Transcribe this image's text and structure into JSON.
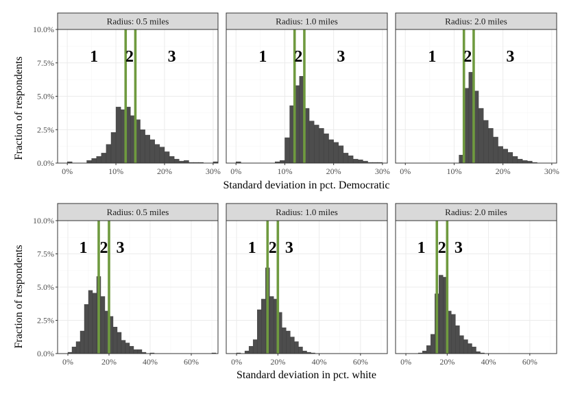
{
  "figure": {
    "rows": [
      {
        "xlabel": "Standard deviation in pct. Democratic",
        "ylabel": "Fraction of respondents"
      },
      {
        "xlabel": "Standard deviation in pct. white",
        "ylabel": "Fraction of respondents"
      }
    ]
  },
  "chart_data": [
    {
      "type": "bar",
      "title": "Radius: 0.5 miles",
      "xlabel": "Standard deviation in pct. Democratic",
      "ylabel": "Fraction of respondents",
      "xlim": [
        -2,
        31
      ],
      "ylim": [
        0,
        10
      ],
      "xticks": [
        0,
        10,
        20,
        30
      ],
      "xtick_labels": [
        "0%",
        "10%",
        "20%",
        "30%"
      ],
      "yticks": [
        0,
        2.5,
        5,
        7.5,
        10
      ],
      "ytick_labels": [
        "0.0%",
        "2.5%",
        "5.0%",
        "7.5%",
        "10.0%"
      ],
      "bin_width": 1,
      "bin_starts": [
        0,
        1,
        2,
        3,
        4,
        5,
        6,
        7,
        8,
        9,
        10,
        11,
        12,
        13,
        14,
        15,
        16,
        17,
        18,
        19,
        20,
        21,
        22,
        23,
        24,
        25,
        26,
        27,
        28,
        29,
        30
      ],
      "values": [
        0.1,
        0,
        0,
        0,
        0.2,
        0.35,
        0.5,
        0.75,
        1.4,
        2.3,
        4.2,
        4.0,
        4.2,
        3.55,
        3.25,
        2.5,
        2.1,
        1.75,
        1.4,
        1.2,
        0.85,
        0.5,
        0.3,
        0.15,
        0.2,
        0.05,
        0.05,
        0.05,
        0,
        0,
        0.1
      ],
      "vlines": [
        12,
        14
      ],
      "region_labels": [
        {
          "text": "1",
          "x": 5.5,
          "y": 8.0
        },
        {
          "text": "2",
          "x": 12.8,
          "y": 8.0
        },
        {
          "text": "3",
          "x": 21.5,
          "y": 8.0
        }
      ]
    },
    {
      "type": "bar",
      "title": "Radius: 1.0 miles",
      "xlabel": "Standard deviation in pct. Democratic",
      "ylabel": "Fraction of respondents",
      "xlim": [
        -2,
        31
      ],
      "ylim": [
        0,
        10
      ],
      "xticks": [
        0,
        10,
        20,
        30
      ],
      "xtick_labels": [
        "0%",
        "10%",
        "20%",
        "30%"
      ],
      "yticks": [
        0,
        2.5,
        5,
        7.5,
        10
      ],
      "ytick_labels": [
        "0.0%",
        "2.5%",
        "5.0%",
        "7.5%",
        "10.0%"
      ],
      "bin_width": 1,
      "bin_starts": [
        0,
        1,
        2,
        3,
        4,
        5,
        6,
        7,
        8,
        9,
        10,
        11,
        12,
        13,
        14,
        15,
        16,
        17,
        18,
        19,
        20,
        21,
        22,
        23,
        24,
        25,
        26,
        27,
        28,
        29,
        30
      ],
      "values": [
        0.1,
        0,
        0,
        0,
        0,
        0,
        0,
        0,
        0.1,
        0.2,
        1.9,
        4.3,
        5.8,
        6.5,
        4.1,
        3.15,
        2.85,
        2.6,
        2.2,
        1.75,
        1.55,
        1.3,
        0.75,
        0.55,
        0.3,
        0.25,
        0.15,
        0.05,
        0.05,
        0.05,
        0
      ],
      "vlines": [
        12,
        14
      ],
      "region_labels": [
        {
          "text": "1",
          "x": 5.5,
          "y": 8.0
        },
        {
          "text": "2",
          "x": 12.8,
          "y": 8.0
        },
        {
          "text": "3",
          "x": 21.5,
          "y": 8.0
        }
      ]
    },
    {
      "type": "bar",
      "title": "Radius: 2.0 miles",
      "xlabel": "Standard deviation in pct. Democratic",
      "ylabel": "Fraction of respondents",
      "xlim": [
        -2,
        31
      ],
      "ylim": [
        0,
        10
      ],
      "xticks": [
        0,
        10,
        20,
        30
      ],
      "xtick_labels": [
        "0%",
        "10%",
        "20%",
        "30%"
      ],
      "yticks": [
        0,
        2.5,
        5,
        7.5,
        10
      ],
      "ytick_labels": [
        "0.0%",
        "2.5%",
        "5.0%",
        "7.5%",
        "10.0%"
      ],
      "bin_width": 1,
      "bin_starts": [
        0,
        1,
        2,
        3,
        4,
        5,
        6,
        7,
        8,
        9,
        10,
        11,
        12,
        13,
        14,
        15,
        16,
        17,
        18,
        19,
        20,
        21,
        22,
        23,
        24,
        25,
        26,
        27,
        28,
        29,
        30
      ],
      "values": [
        0,
        0,
        0,
        0,
        0,
        0,
        0,
        0,
        0,
        0,
        0,
        0.6,
        5.6,
        6.8,
        5.4,
        4.1,
        3.2,
        2.6,
        1.95,
        1.25,
        1.05,
        0.8,
        0.5,
        0.3,
        0.2,
        0.15,
        0.05,
        0,
        0,
        0,
        0
      ],
      "vlines": [
        12,
        14
      ],
      "region_labels": [
        {
          "text": "1",
          "x": 5.5,
          "y": 8.0
        },
        {
          "text": "2",
          "x": 12.8,
          "y": 8.0
        },
        {
          "text": "3",
          "x": 21.5,
          "y": 8.0
        }
      ]
    },
    {
      "type": "bar",
      "title": "Radius: 0.5 miles",
      "xlabel": "Standard deviation in pct. white",
      "ylabel": "Fraction of respondents",
      "xlim": [
        -5,
        73
      ],
      "ylim": [
        0,
        10
      ],
      "xticks": [
        0,
        20,
        40,
        60
      ],
      "xtick_labels": [
        "0%",
        "20%",
        "40%",
        "60%"
      ],
      "yticks": [
        0,
        2.5,
        5,
        7.5,
        10
      ],
      "ytick_labels": [
        "0.0%",
        "2.5%",
        "5.0%",
        "7.5%",
        "10.0%"
      ],
      "bin_width": 2,
      "bin_starts": [
        0,
        2,
        4,
        6,
        8,
        10,
        12,
        14,
        16,
        18,
        20,
        22,
        24,
        26,
        28,
        30,
        32,
        34,
        36,
        38,
        40,
        42,
        44,
        46,
        48,
        50,
        52,
        54,
        56,
        58,
        60,
        62,
        64,
        66,
        68,
        70
      ],
      "values": [
        0.1,
        0.5,
        0.9,
        1.7,
        3.7,
        4.75,
        4.55,
        5.8,
        4.3,
        3.2,
        2.8,
        2.0,
        1.6,
        1.0,
        0.8,
        0.55,
        0.3,
        0.3,
        0.1,
        0,
        0.05,
        0,
        0,
        0,
        0,
        0,
        0,
        0,
        0,
        0,
        0,
        0,
        0,
        0,
        0,
        0.05
      ],
      "vlines": [
        15,
        20
      ],
      "region_labels": [
        {
          "text": "1",
          "x": 7.5,
          "y": 8.0
        },
        {
          "text": "2",
          "x": 17.5,
          "y": 8.0
        },
        {
          "text": "3",
          "x": 25.5,
          "y": 8.0
        }
      ]
    },
    {
      "type": "bar",
      "title": "Radius: 1.0 miles",
      "xlabel": "Standard deviation in pct. white",
      "ylabel": "Fraction of respondents",
      "xlim": [
        -5,
        73
      ],
      "ylim": [
        0,
        10
      ],
      "xticks": [
        0,
        20,
        40,
        60
      ],
      "xtick_labels": [
        "0%",
        "20%",
        "40%",
        "60%"
      ],
      "yticks": [
        0,
        2.5,
        5,
        7.5,
        10
      ],
      "ytick_labels": [
        "0.0%",
        "2.5%",
        "5.0%",
        "7.5%",
        "10.0%"
      ],
      "bin_width": 2,
      "bin_starts": [
        0,
        2,
        4,
        6,
        8,
        10,
        12,
        14,
        16,
        18,
        20,
        22,
        24,
        26,
        28,
        30,
        32,
        34,
        36,
        38,
        40,
        42,
        44,
        46,
        48,
        50,
        52,
        54,
        56,
        58,
        60,
        62,
        64,
        66,
        68,
        70
      ],
      "values": [
        0.05,
        0,
        0.2,
        0.55,
        1.05,
        3.3,
        4.1,
        6.45,
        4.3,
        4.1,
        3.1,
        1.95,
        1.7,
        1.25,
        0.9,
        0.5,
        0.2,
        0.1,
        0.05,
        0,
        0,
        0,
        0,
        0,
        0,
        0,
        0,
        0,
        0,
        0,
        0,
        0,
        0,
        0,
        0,
        0
      ],
      "vlines": [
        15,
        20
      ],
      "region_labels": [
        {
          "text": "1",
          "x": 7.5,
          "y": 8.0
        },
        {
          "text": "2",
          "x": 17.5,
          "y": 8.0
        },
        {
          "text": "3",
          "x": 25.5,
          "y": 8.0
        }
      ]
    },
    {
      "type": "bar",
      "title": "Radius: 2.0 miles",
      "xlabel": "Standard deviation in pct. white",
      "ylabel": "Fraction of respondents",
      "xlim": [
        -5,
        73
      ],
      "ylim": [
        0,
        10
      ],
      "xticks": [
        0,
        20,
        40,
        60
      ],
      "xtick_labels": [
        "0%",
        "20%",
        "40%",
        "60%"
      ],
      "yticks": [
        0,
        2.5,
        5,
        7.5,
        10
      ],
      "ytick_labels": [
        "0.0%",
        "2.5%",
        "5.0%",
        "7.5%",
        "10.0%"
      ],
      "bin_width": 2,
      "bin_starts": [
        0,
        2,
        4,
        6,
        8,
        10,
        12,
        14,
        16,
        18,
        20,
        22,
        24,
        26,
        28,
        30,
        32,
        34,
        36,
        38,
        40,
        42,
        44,
        46,
        48,
        50,
        52,
        54,
        56,
        58,
        60,
        62,
        64,
        66,
        68,
        70
      ],
      "values": [
        0,
        0,
        0,
        0.05,
        0.2,
        0.6,
        1.45,
        4.5,
        5.9,
        5.75,
        3.2,
        2.95,
        2.1,
        1.35,
        1.05,
        0.75,
        0.5,
        0.15,
        0.05,
        0,
        0,
        0,
        0,
        0,
        0,
        0,
        0,
        0,
        0,
        0,
        0,
        0,
        0,
        0,
        0,
        0
      ],
      "vlines": [
        15,
        20
      ],
      "region_labels": [
        {
          "text": "1",
          "x": 7.5,
          "y": 8.0
        },
        {
          "text": "2",
          "x": 17.5,
          "y": 8.0
        },
        {
          "text": "3",
          "x": 25.5,
          "y": 8.0
        }
      ]
    }
  ]
}
